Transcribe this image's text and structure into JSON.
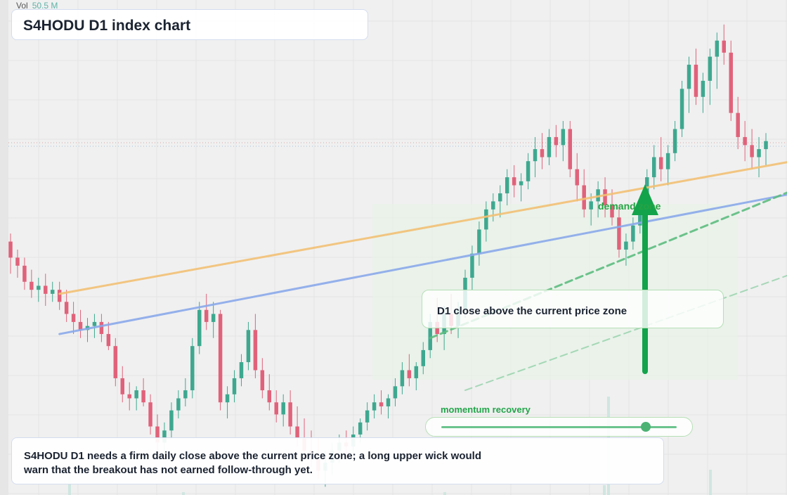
{
  "header": {
    "vol_label": "Vol",
    "vol_value": "50.5 M"
  },
  "title": "S4HODU D1 index chart",
  "callout": {
    "text": "D1 close above the current price zone"
  },
  "demand_zone": {
    "label": "demand zone"
  },
  "momentum": {
    "label": "momentum recovery",
    "level": 0.87
  },
  "note": {
    "text": "S4HODU D1 needs a firm daily close above the current price zone; a long upper wick would warn that the breakout has not earned follow-through yet."
  },
  "colors": {
    "up": "#3ea88f",
    "down": "#e0627a",
    "upper_line": "#f2c073",
    "lower_line": "#8aa8ea",
    "trend": "#5dbd7f",
    "arrow": "#13a34b"
  },
  "chart_data": {
    "type": "candlestick",
    "title": "S4HODU D1 index chart",
    "xlabel": "",
    "ylabel": "",
    "ylim": [
      0,
      100
    ],
    "grid": true,
    "series": [
      {
        "o": 42,
        "h": 44,
        "l": 34,
        "c": 38
      },
      {
        "o": 38,
        "h": 40,
        "l": 33,
        "c": 36
      },
      {
        "o": 36,
        "h": 38,
        "l": 30,
        "c": 32
      },
      {
        "o": 32,
        "h": 35,
        "l": 28,
        "c": 30
      },
      {
        "o": 30,
        "h": 33,
        "l": 27,
        "c": 31
      },
      {
        "o": 31,
        "h": 34,
        "l": 26,
        "c": 29
      },
      {
        "o": 29,
        "h": 32,
        "l": 27,
        "c": 30
      },
      {
        "o": 30,
        "h": 32,
        "l": 25,
        "c": 27
      },
      {
        "o": 27,
        "h": 30,
        "l": 22,
        "c": 24
      },
      {
        "o": 24,
        "h": 27,
        "l": 19,
        "c": 22
      },
      {
        "o": 22,
        "h": 25,
        "l": 18,
        "c": 20
      },
      {
        "o": 20,
        "h": 23,
        "l": 17,
        "c": 21
      },
      {
        "o": 21,
        "h": 24,
        "l": 18,
        "c": 22
      },
      {
        "o": 22,
        "h": 24,
        "l": 17,
        "c": 19
      },
      {
        "o": 19,
        "h": 22,
        "l": 15,
        "c": 16
      },
      {
        "o": 16,
        "h": 18,
        "l": 6,
        "c": 8
      },
      {
        "o": 8,
        "h": 11,
        "l": 2,
        "c": 4
      },
      {
        "o": 4,
        "h": 7,
        "l": 0,
        "c": 3
      },
      {
        "o": 3,
        "h": 6,
        "l": 0,
        "c": 5
      },
      {
        "o": 5,
        "h": 8,
        "l": 1,
        "c": 2
      },
      {
        "o": 2,
        "h": 4,
        "l": -6,
        "c": -4
      },
      {
        "o": -4,
        "h": -1,
        "l": -10,
        "c": -8
      },
      {
        "o": -8,
        "h": -3,
        "l": -11,
        "c": -5
      },
      {
        "o": -5,
        "h": 2,
        "l": -7,
        "c": 0
      },
      {
        "o": 0,
        "h": 5,
        "l": -2,
        "c": 3
      },
      {
        "o": 3,
        "h": 8,
        "l": 1,
        "c": 5
      },
      {
        "o": 5,
        "h": 18,
        "l": 3,
        "c": 16
      },
      {
        "o": 16,
        "h": 27,
        "l": 14,
        "c": 25
      },
      {
        "o": 25,
        "h": 29,
        "l": 20,
        "c": 22
      },
      {
        "o": 22,
        "h": 27,
        "l": 18,
        "c": 24
      },
      {
        "o": 24,
        "h": 25,
        "l": 0,
        "c": 2
      },
      {
        "o": 2,
        "h": 6,
        "l": -2,
        "c": 4
      },
      {
        "o": 4,
        "h": 10,
        "l": 2,
        "c": 8
      },
      {
        "o": 8,
        "h": 14,
        "l": 6,
        "c": 12
      },
      {
        "o": 12,
        "h": 22,
        "l": 10,
        "c": 20
      },
      {
        "o": 20,
        "h": 24,
        "l": 8,
        "c": 10
      },
      {
        "o": 10,
        "h": 13,
        "l": 3,
        "c": 5
      },
      {
        "o": 5,
        "h": 9,
        "l": 0,
        "c": 2
      },
      {
        "o": 2,
        "h": 5,
        "l": -3,
        "c": -1
      },
      {
        "o": -1,
        "h": 4,
        "l": -4,
        "c": 2
      },
      {
        "o": 2,
        "h": 5,
        "l": -6,
        "c": -4
      },
      {
        "o": -4,
        "h": 1,
        "l": -9,
        "c": -7
      },
      {
        "o": -7,
        "h": -2,
        "l": -12,
        "c": -10
      },
      {
        "o": -10,
        "h": -5,
        "l": -14,
        "c": -12
      },
      {
        "o": -12,
        "h": -7,
        "l": -17,
        "c": -15
      },
      {
        "o": -15,
        "h": -10,
        "l": -19,
        "c": -13
      },
      {
        "o": -13,
        "h": -8,
        "l": -16,
        "c": -10
      },
      {
        "o": -10,
        "h": -6,
        "l": -13,
        "c": -8
      },
      {
        "o": -8,
        "h": -5,
        "l": -12,
        "c": -9
      },
      {
        "o": -9,
        "h": -4,
        "l": -11,
        "c": -6
      },
      {
        "o": -6,
        "h": -2,
        "l": -8,
        "c": -3
      },
      {
        "o": -3,
        "h": 2,
        "l": -5,
        "c": 0
      },
      {
        "o": 0,
        "h": 4,
        "l": -2,
        "c": 2
      },
      {
        "o": 2,
        "h": 5,
        "l": -1,
        "c": 1
      },
      {
        "o": 1,
        "h": 4,
        "l": -2,
        "c": 3
      },
      {
        "o": 3,
        "h": 8,
        "l": 1,
        "c": 6
      },
      {
        "o": 6,
        "h": 12,
        "l": 4,
        "c": 10
      },
      {
        "o": 10,
        "h": 14,
        "l": 6,
        "c": 8
      },
      {
        "o": 8,
        "h": 12,
        "l": 5,
        "c": 11
      },
      {
        "o": 11,
        "h": 17,
        "l": 9,
        "c": 15
      },
      {
        "o": 15,
        "h": 24,
        "l": 13,
        "c": 22
      },
      {
        "o": 22,
        "h": 28,
        "l": 17,
        "c": 19
      },
      {
        "o": 19,
        "h": 26,
        "l": 15,
        "c": 24
      },
      {
        "o": 24,
        "h": 29,
        "l": 19,
        "c": 21
      },
      {
        "o": 21,
        "h": 27,
        "l": 18,
        "c": 25
      },
      {
        "o": 25,
        "h": 35,
        "l": 23,
        "c": 33
      },
      {
        "o": 33,
        "h": 41,
        "l": 30,
        "c": 39
      },
      {
        "o": 39,
        "h": 47,
        "l": 36,
        "c": 45
      },
      {
        "o": 45,
        "h": 52,
        "l": 42,
        "c": 50
      },
      {
        "o": 50,
        "h": 54,
        "l": 47,
        "c": 52
      },
      {
        "o": 52,
        "h": 56,
        "l": 48,
        "c": 54
      },
      {
        "o": 54,
        "h": 60,
        "l": 51,
        "c": 58
      },
      {
        "o": 58,
        "h": 61,
        "l": 53,
        "c": 56
      },
      {
        "o": 56,
        "h": 59,
        "l": 52,
        "c": 57
      },
      {
        "o": 57,
        "h": 64,
        "l": 55,
        "c": 62
      },
      {
        "o": 62,
        "h": 68,
        "l": 58,
        "c": 65
      },
      {
        "o": 65,
        "h": 69,
        "l": 60,
        "c": 63
      },
      {
        "o": 63,
        "h": 70,
        "l": 61,
        "c": 68
      },
      {
        "o": 68,
        "h": 71,
        "l": 63,
        "c": 66
      },
      {
        "o": 66,
        "h": 72,
        "l": 62,
        "c": 70
      },
      {
        "o": 70,
        "h": 72,
        "l": 58,
        "c": 60
      },
      {
        "o": 60,
        "h": 64,
        "l": 52,
        "c": 56
      },
      {
        "o": 56,
        "h": 60,
        "l": 48,
        "c": 50
      },
      {
        "o": 50,
        "h": 54,
        "l": 46,
        "c": 52
      },
      {
        "o": 52,
        "h": 57,
        "l": 48,
        "c": 55
      },
      {
        "o": 55,
        "h": 58,
        "l": 48,
        "c": 51
      },
      {
        "o": 51,
        "h": 55,
        "l": 46,
        "c": 48
      },
      {
        "o": 48,
        "h": 51,
        "l": 38,
        "c": 40
      },
      {
        "o": 40,
        "h": 44,
        "l": 36,
        "c": 42
      },
      {
        "o": 42,
        "h": 48,
        "l": 40,
        "c": 46
      },
      {
        "o": 46,
        "h": 52,
        "l": 44,
        "c": 50
      },
      {
        "o": 50,
        "h": 60,
        "l": 47,
        "c": 58
      },
      {
        "o": 58,
        "h": 66,
        "l": 55,
        "c": 63
      },
      {
        "o": 63,
        "h": 68,
        "l": 57,
        "c": 60
      },
      {
        "o": 60,
        "h": 66,
        "l": 56,
        "c": 64
      },
      {
        "o": 64,
        "h": 72,
        "l": 62,
        "c": 70
      },
      {
        "o": 70,
        "h": 82,
        "l": 68,
        "c": 80
      },
      {
        "o": 80,
        "h": 88,
        "l": 74,
        "c": 86
      },
      {
        "o": 86,
        "h": 90,
        "l": 76,
        "c": 78
      },
      {
        "o": 78,
        "h": 84,
        "l": 74,
        "c": 82
      },
      {
        "o": 82,
        "h": 90,
        "l": 76,
        "c": 88
      },
      {
        "o": 88,
        "h": 94,
        "l": 80,
        "c": 92
      },
      {
        "o": 92,
        "h": 96,
        "l": 86,
        "c": 89
      },
      {
        "o": 89,
        "h": 92,
        "l": 72,
        "c": 74
      },
      {
        "o": 74,
        "h": 78,
        "l": 65,
        "c": 68
      },
      {
        "o": 68,
        "h": 72,
        "l": 62,
        "c": 66
      },
      {
        "o": 66,
        "h": 70,
        "l": 60,
        "c": 63
      },
      {
        "o": 63,
        "h": 68,
        "l": 58,
        "c": 65
      },
      {
        "o": 65,
        "h": 69,
        "l": 61,
        "c": 67
      }
    ],
    "lines": [
      {
        "name": "upper band",
        "color": "#f2c073",
        "from": [
          7,
          29
        ],
        "to": [
          115,
          63
        ]
      },
      {
        "name": "lower band",
        "color": "#8aa8ea",
        "from": [
          7,
          19
        ],
        "to": [
          115,
          55
        ]
      },
      {
        "name": "trend",
        "color": "#5dbd7f",
        "from": [
          60,
          18
        ],
        "to": [
          115,
          57
        ],
        "dashed": true
      },
      {
        "name": "trend low",
        "color": "#5dbd7f",
        "from": [
          65,
          5
        ],
        "to": [
          115,
          36
        ],
        "dashed": true
      }
    ]
  }
}
